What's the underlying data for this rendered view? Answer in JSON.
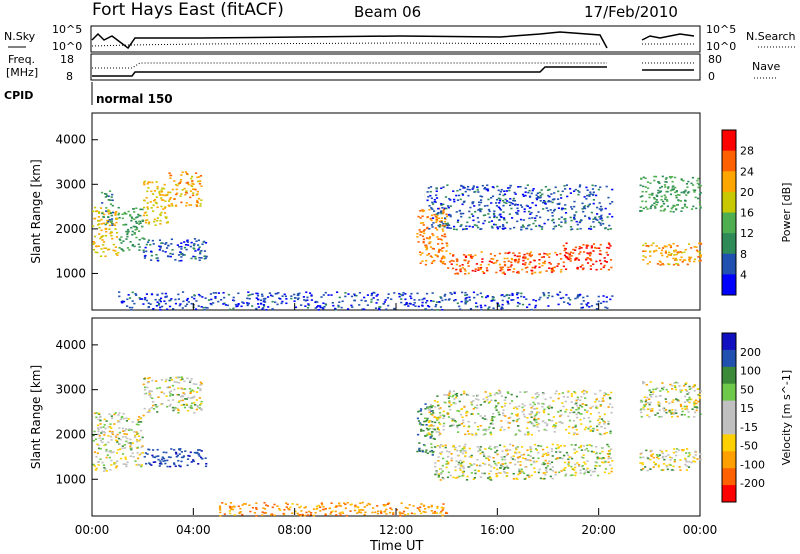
{
  "header": {
    "title": "Fort Hays East (fitACF)",
    "beam": "Beam 06",
    "date": "17/Feb/2010"
  },
  "strip1": {
    "left_label": "N.Sky",
    "left_ticks": [
      "10^5",
      "10^0"
    ],
    "right_label": "N.Search",
    "right_ticks": [
      "10^5",
      "10^0"
    ]
  },
  "strip2": {
    "left_label_line1": "Freq.",
    "left_label_line2": "[MHz]",
    "left_ticks": [
      "18",
      "8"
    ],
    "right_label": "Nave",
    "right_ticks": [
      "80",
      "0"
    ]
  },
  "cpid": {
    "label": "CPID",
    "mode": "normal 150"
  },
  "colors": {
    "power_scale": [
      "#0000ff",
      "#2050b0",
      "#2e8b57",
      "#4fae4f",
      "#c8c800",
      "#ffa500",
      "#ff6000",
      "#ff0000"
    ],
    "velocity_scale": [
      "#1010c0",
      "#2050b0",
      "#3a8a3a",
      "#6ec84a",
      "#c0c0c0",
      "#c0c0c0",
      "#ffd000",
      "#ffa000",
      "#ff6000",
      "#ff0000"
    ]
  },
  "chart_data": [
    {
      "type": "heatmap",
      "panel": "power",
      "ylabel": "Slant Range [km]",
      "y_ticks": [
        "1000",
        "2000",
        "3000",
        "4000"
      ],
      "ylim": [
        180,
        4600
      ],
      "colorbar_label": "Power [dB]",
      "colorbar_ticks": [
        "28",
        "24",
        "20",
        "16",
        "12",
        "8",
        "4"
      ],
      "colorbar_range": [
        0,
        32
      ],
      "x_ticks": [
        "00:00",
        "04:00",
        "08:00",
        "12:00",
        "16:00",
        "20:00",
        "00:00"
      ],
      "xlim_hours": [
        0,
        24
      ],
      "regions": [
        {
          "t": [
            0.0,
            1.0
          ],
          "r": [
            1400,
            2500
          ],
          "power": 20
        },
        {
          "t": [
            0.3,
            0.8
          ],
          "r": [
            2100,
            2900
          ],
          "power": 10
        },
        {
          "t": [
            1.0,
            2.0
          ],
          "r": [
            1500,
            2500
          ],
          "power": 12
        },
        {
          "t": [
            2.0,
            3.0
          ],
          "r": [
            2100,
            3100
          ],
          "power": 20
        },
        {
          "t": [
            3.0,
            4.3
          ],
          "r": [
            2500,
            3300
          ],
          "power": 22
        },
        {
          "t": [
            2.0,
            4.5
          ],
          "r": [
            1300,
            1800
          ],
          "power": 6
        },
        {
          "t": [
            12.8,
            14.0
          ],
          "r": [
            1200,
            2500
          ],
          "power": 24
        },
        {
          "t": [
            14.0,
            18.5
          ],
          "r": [
            1000,
            1500
          ],
          "power": 26
        },
        {
          "t": [
            18.5,
            20.5
          ],
          "r": [
            1100,
            1700
          ],
          "power": 28
        },
        {
          "t": [
            13.2,
            20.5
          ],
          "r": [
            2000,
            3000
          ],
          "power": 6
        },
        {
          "t": [
            21.6,
            24.0
          ],
          "r": [
            1200,
            1700
          ],
          "power": 22
        },
        {
          "t": [
            21.6,
            24.0
          ],
          "r": [
            2400,
            3200
          ],
          "power": 12
        },
        {
          "t": [
            1.0,
            20.5
          ],
          "r": [
            200,
            600
          ],
          "power": 5
        }
      ]
    },
    {
      "type": "heatmap",
      "panel": "velocity",
      "ylabel": "Slant Range [km]",
      "y_ticks": [
        "1000",
        "2000",
        "3000",
        "4000"
      ],
      "ylim": [
        180,
        4600
      ],
      "colorbar_label": "Velocity [m s^-1]",
      "colorbar_ticks": [
        "200",
        "100",
        "50",
        "15",
        "-15",
        "-50",
        "-100",
        "-200"
      ],
      "colorbar_range": [
        -250,
        250
      ],
      "x_ticks": [
        "00:00",
        "04:00",
        "08:00",
        "12:00",
        "16:00",
        "20:00",
        "00:00"
      ],
      "xlim_hours": [
        0,
        24
      ],
      "xlabel": "Time UT",
      "regions": [
        {
          "t": [
            0.0,
            1.0
          ],
          "r": [
            1200,
            2500
          ],
          "vel": 0
        },
        {
          "t": [
            1.0,
            2.0
          ],
          "r": [
            1300,
            2500
          ],
          "vel": 0
        },
        {
          "t": [
            2.0,
            4.3
          ],
          "r": [
            2500,
            3300
          ],
          "vel": 0
        },
        {
          "t": [
            2.0,
            4.5
          ],
          "r": [
            1300,
            1700
          ],
          "vel": 120
        },
        {
          "t": [
            12.8,
            13.5
          ],
          "r": [
            1500,
            2700
          ],
          "vel": 60
        },
        {
          "t": [
            13.5,
            18.5
          ],
          "r": [
            1000,
            1800
          ],
          "vel": 0
        },
        {
          "t": [
            18.5,
            20.5
          ],
          "r": [
            1100,
            1800
          ],
          "vel": 0
        },
        {
          "t": [
            13.2,
            20.5
          ],
          "r": [
            2000,
            3000
          ],
          "vel": 0
        },
        {
          "t": [
            21.6,
            24.0
          ],
          "r": [
            1200,
            1700
          ],
          "vel": 0
        },
        {
          "t": [
            21.6,
            24.0
          ],
          "r": [
            2400,
            3200
          ],
          "vel": 0
        },
        {
          "t": [
            5.0,
            14.0
          ],
          "r": [
            200,
            500
          ],
          "vel": -60
        }
      ]
    }
  ]
}
